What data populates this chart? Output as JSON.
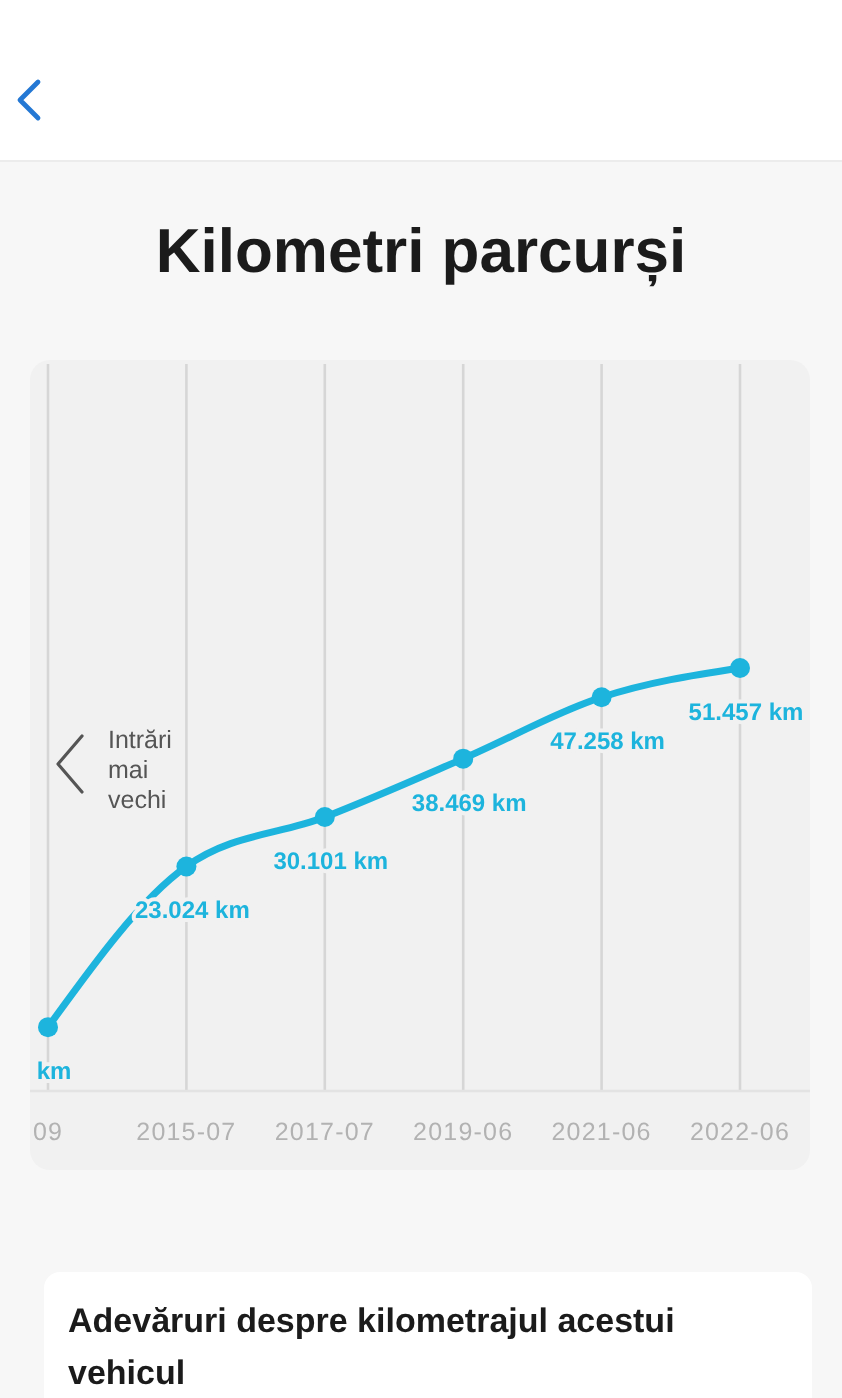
{
  "chart_data": {
    "type": "line",
    "title": "Kilometri parcurși",
    "categories": [
      "09",
      "2015-07",
      "2017-07",
      "2019-06",
      "2021-06",
      "2022-06"
    ],
    "values": [
      0,
      23024,
      30101,
      38469,
      47258,
      51457
    ],
    "value_labels": [
      "km",
      "23.024 km",
      "30.101 km",
      "38.469 km",
      "47.258 km",
      "51.457 km"
    ],
    "color": "#1db4dd",
    "ylim": [
      -9000,
      95000
    ],
    "tick_labels": "x",
    "grid": "x",
    "marker": "circle",
    "line_style": "solid",
    "annotations": [
      "Intrări mai vechi",
      "Adevăruri despre kilometrajul acestui vehicul"
    ]
  }
}
